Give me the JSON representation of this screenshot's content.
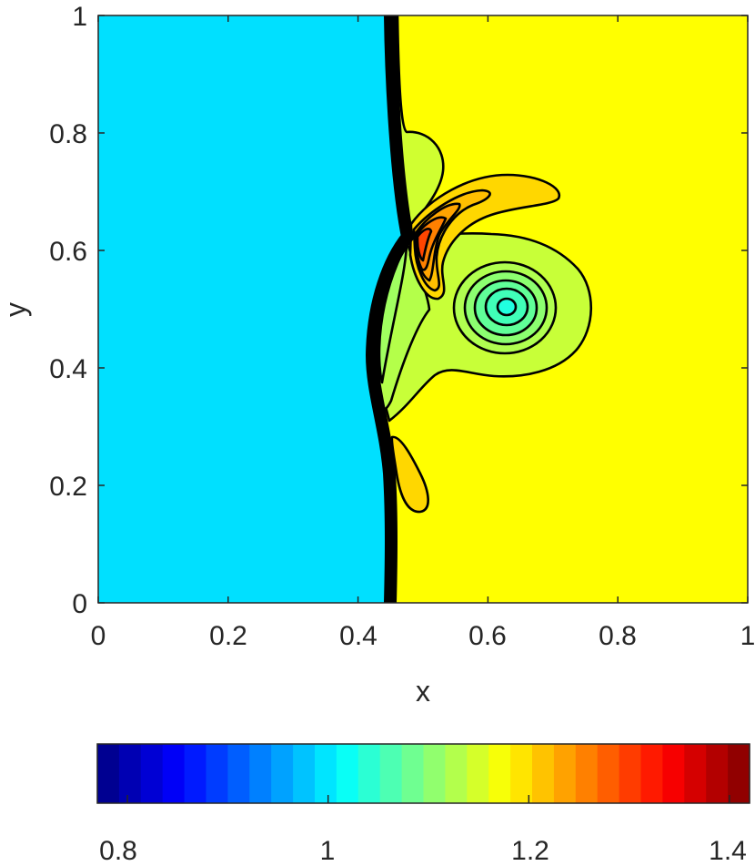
{
  "chart_data": {
    "type": "contour",
    "title": "",
    "xlabel": "x",
    "ylabel": "y",
    "xlim": [
      0,
      1
    ],
    "ylim": [
      0,
      1
    ],
    "xticks": [
      0,
      0.2,
      0.4,
      0.6,
      0.8,
      1
    ],
    "yticks": [
      0,
      0.2,
      0.4,
      0.6,
      0.8,
      1
    ],
    "xtick_labels": [
      "0",
      "0.2",
      "0.4",
      "0.6",
      "0.8",
      "1"
    ],
    "ytick_labels": [
      "0",
      "0.2",
      "0.4",
      "0.6",
      "0.8",
      "1"
    ],
    "grid": false,
    "colormap": "jet",
    "colorbar": {
      "location": "bottom",
      "clim": [
        0.77,
        1.42
      ],
      "levels": 30,
      "ticks": [
        0.8,
        1,
        1.2,
        1.4
      ],
      "tick_labels": [
        "0.8",
        "1",
        "1.2",
        "1.4"
      ]
    },
    "regions": {
      "left_state_value": 1.0,
      "right_state_value": 1.2,
      "shock_x_approx": 0.45,
      "vortex_center": [
        0.63,
        0.5
      ],
      "vortex_min_value": 1.08,
      "peak_value_approx": 1.35,
      "peak_location": [
        0.49,
        0.62
      ]
    }
  }
}
